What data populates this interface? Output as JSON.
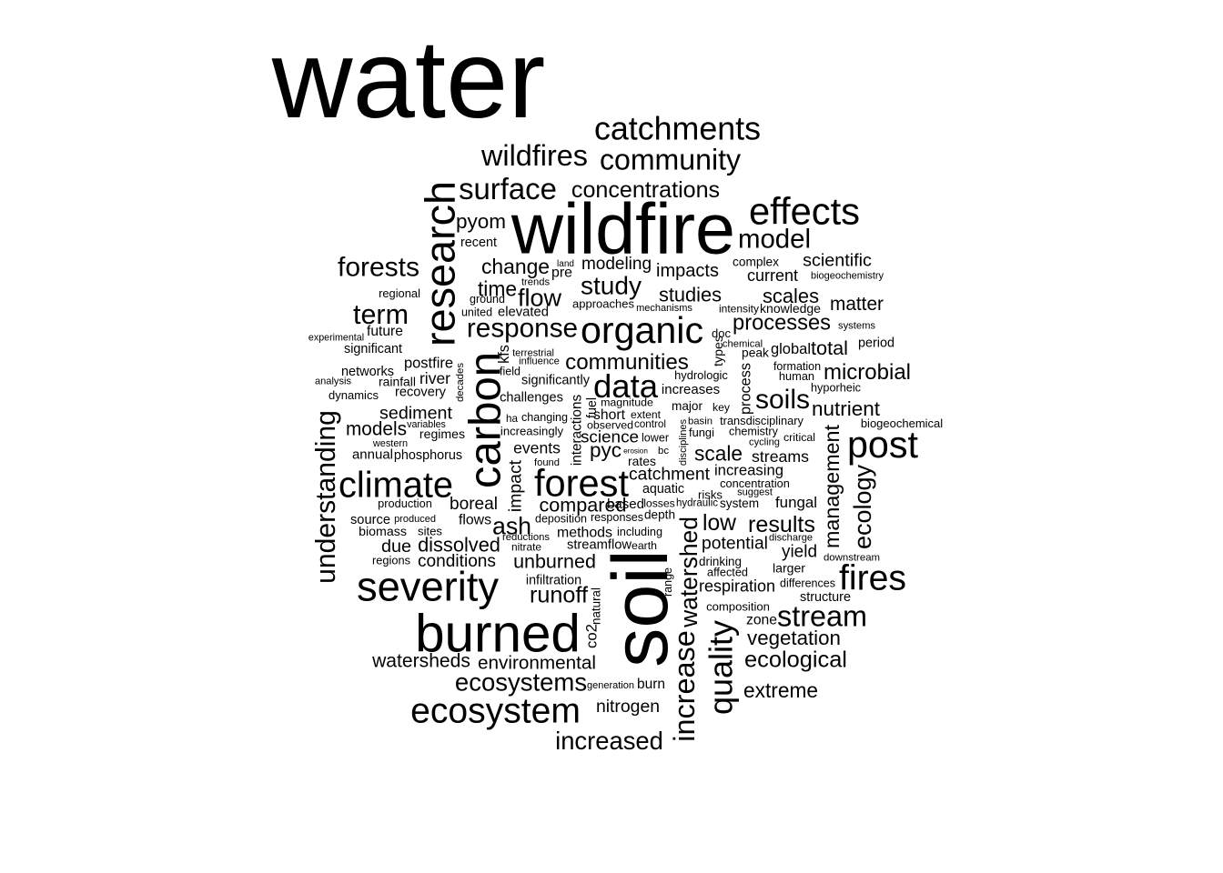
{
  "words": [
    "water",
    "wildfire",
    "soil",
    "burned",
    "severity",
    "ecosystem",
    "forest",
    "carbon",
    "research",
    "organic",
    "catchments",
    "effects",
    "community",
    "wildfires",
    "surface",
    "post",
    "data",
    "climate",
    "fires",
    "stream",
    "quality",
    "watershed",
    "increase",
    "forests",
    "term",
    "response",
    "model",
    "study",
    "flow",
    "change",
    "time",
    "modeling",
    "impacts",
    "studies",
    "scales",
    "processes",
    "communities",
    "soils",
    "microbial",
    "nutrient",
    "management",
    "ecology",
    "understanding",
    "models",
    "sediment",
    "river",
    "postfire",
    "networks",
    "rainfall",
    "recovery",
    "regional",
    "future",
    "significant",
    "dynamics",
    "analysis",
    "experimental",
    "concentrations",
    "pyom",
    "recent",
    "scientific",
    "current",
    "complex",
    "biogeochemistry",
    "matter",
    "knowledge",
    "intensity",
    "systems",
    "total",
    "global",
    "peak",
    "chemical",
    "period",
    "formation",
    "human",
    "hyporheic",
    "process",
    "types",
    "doc",
    "hydrologic",
    "increases",
    "major",
    "key",
    "transdisciplinary",
    "chemistry",
    "cycling",
    "critical",
    "biogeochemical",
    "scale",
    "streams",
    "increasing",
    "concentration",
    "suggest",
    "system",
    "fungal",
    "risks",
    "aquatic",
    "catchment",
    "rates",
    "erosion",
    "bc",
    "lower",
    "extent",
    "control",
    "observed",
    "short",
    "magnitude",
    "fuel",
    "science",
    "pyc",
    "events",
    "found",
    "interactions",
    "challenges",
    "significantly",
    "field",
    "influence",
    "terrestrial",
    "kfs",
    "united",
    "ground",
    "elevated",
    "approaches",
    "mechanisms",
    "trends",
    "land",
    "pre",
    "decades",
    "impact",
    "changing",
    "ha",
    "increasingly",
    "variables",
    "regimes",
    "western",
    "annual",
    "phosphorus",
    "production",
    "source",
    "produced",
    "biomass",
    "sites",
    "due",
    "regions",
    "dissolved",
    "conditions",
    "boreal",
    "flows",
    "ash",
    "reductions",
    "nitrate",
    "compared",
    "based",
    "deposition",
    "responses",
    "losses",
    "depth",
    "hydraulic",
    "methods",
    "including",
    "streamflow",
    "earth",
    "unburned",
    "infiltration",
    "runoff",
    "natural",
    "co2",
    "range",
    "low",
    "potential",
    "respiration",
    "drinking",
    "affected",
    "larger",
    "results",
    "yield",
    "discharge",
    "downstream",
    "differences",
    "structure",
    "composition",
    "zone",
    "vegetation",
    "ecological",
    "extreme",
    "watersheds",
    "environmental",
    "ecosystems",
    "generation",
    "burn",
    "nitrogen",
    "increased",
    "fungi",
    "basin",
    "disciplines"
  ]
}
